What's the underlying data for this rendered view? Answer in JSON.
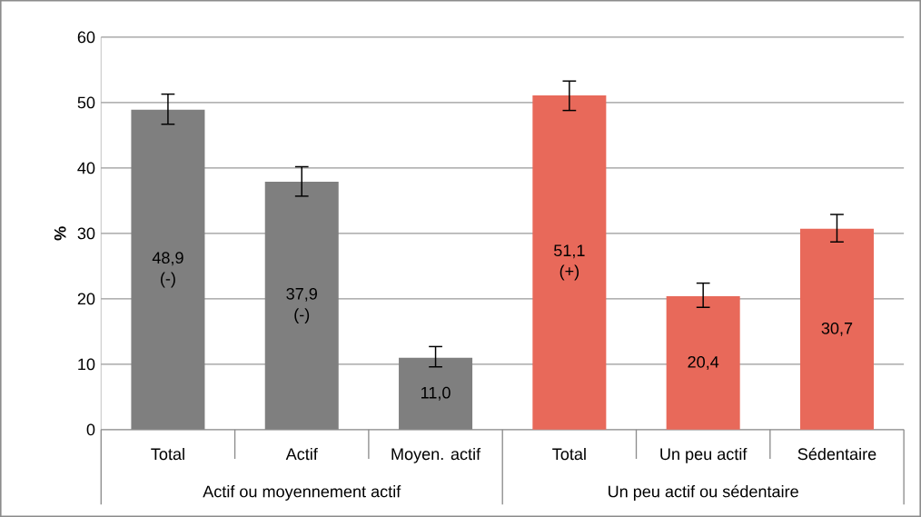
{
  "chart_data": {
    "type": "bar",
    "ylabel": "%",
    "categories": [
      "Total",
      "Actif",
      "Moyen. actif",
      "Total",
      "Un peu actif",
      "Sédentaire"
    ],
    "values": [
      48.9,
      37.9,
      11.0,
      51.1,
      20.4,
      30.7
    ],
    "colors": [
      "#7f7f7f",
      "#7f7f7f",
      "#7f7f7f",
      "#e8695a",
      "#e8695a",
      "#e8695a"
    ],
    "errors": [
      [
        46.7,
        51.3
      ],
      [
        35.7,
        40.2
      ],
      [
        9.6,
        12.7
      ],
      [
        48.8,
        53.3
      ],
      [
        18.7,
        22.4
      ],
      [
        28.7,
        32.9
      ]
    ],
    "value_labels": [
      "48,9 (-)",
      "37,9 (-)",
      "11,0",
      "51,1 (+)",
      "20,4",
      "30,7"
    ],
    "annotations": [
      "Actif ou moyennement actif",
      "Un peu actif ou sédentaire"
    ],
    "ylim": [
      0,
      60
    ],
    "yticks": [
      0,
      10,
      20,
      30,
      40,
      50,
      60
    ],
    "grid": "y"
  }
}
